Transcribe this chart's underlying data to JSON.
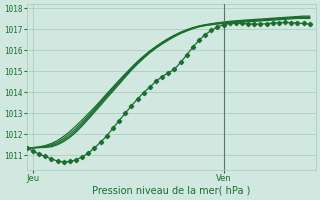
{
  "title": "",
  "xlabel": "Pression niveau de la mer( hPa )",
  "ylabel": "",
  "bg_color": "#d0e8e0",
  "plot_bg_color": "#d0e8e0",
  "grid_color": "#a8c8bc",
  "line_color": "#1a6e2e",
  "ylim": [
    1010.3,
    1018.2
  ],
  "xlim": [
    0,
    47
  ],
  "yticks": [
    1011,
    1012,
    1013,
    1014,
    1015,
    1016,
    1017,
    1018
  ],
  "xtick_positions": [
    1,
    32
  ],
  "xtick_labels": [
    "Jeu",
    "Ven"
  ],
  "vline_x": 32,
  "smooth_series": [
    [
      1011.35,
      1011.35,
      1011.36,
      1011.37,
      1011.4,
      1011.5,
      1011.65,
      1011.85,
      1012.1,
      1012.4,
      1012.72,
      1013.05,
      1013.38,
      1013.72,
      1014.05,
      1014.38,
      1014.72,
      1015.05,
      1015.35,
      1015.62,
      1015.88,
      1016.1,
      1016.3,
      1016.48,
      1016.65,
      1016.8,
      1016.92,
      1017.03,
      1017.12,
      1017.18,
      1017.22,
      1017.26,
      1017.28,
      1017.3,
      1017.32,
      1017.34,
      1017.36,
      1017.38,
      1017.4,
      1017.42,
      1017.44,
      1017.46,
      1017.48,
      1017.5,
      1017.52,
      1017.52,
      1017.52
    ],
    [
      1011.35,
      1011.35,
      1011.37,
      1011.4,
      1011.45,
      1011.55,
      1011.72,
      1011.92,
      1012.18,
      1012.48,
      1012.8,
      1013.13,
      1013.46,
      1013.8,
      1014.12,
      1014.45,
      1014.78,
      1015.1,
      1015.4,
      1015.67,
      1015.92,
      1016.14,
      1016.34,
      1016.52,
      1016.68,
      1016.83,
      1016.95,
      1017.05,
      1017.13,
      1017.19,
      1017.23,
      1017.27,
      1017.3,
      1017.33,
      1017.36,
      1017.38,
      1017.4,
      1017.42,
      1017.44,
      1017.46,
      1017.48,
      1017.5,
      1017.52,
      1017.54,
      1017.56,
      1017.56,
      1017.56
    ],
    [
      1011.35,
      1011.36,
      1011.38,
      1011.42,
      1011.5,
      1011.62,
      1011.8,
      1012.02,
      1012.28,
      1012.57,
      1012.88,
      1013.2,
      1013.53,
      1013.87,
      1014.19,
      1014.52,
      1014.84,
      1015.14,
      1015.43,
      1015.7,
      1015.95,
      1016.17,
      1016.37,
      1016.55,
      1016.71,
      1016.85,
      1016.97,
      1017.07,
      1017.15,
      1017.21,
      1017.25,
      1017.29,
      1017.32,
      1017.35,
      1017.38,
      1017.4,
      1017.42,
      1017.44,
      1017.46,
      1017.48,
      1017.5,
      1017.52,
      1017.54,
      1017.56,
      1017.58,
      1017.58,
      1017.58
    ],
    [
      1011.35,
      1011.36,
      1011.4,
      1011.46,
      1011.56,
      1011.7,
      1011.9,
      1012.13,
      1012.4,
      1012.68,
      1012.98,
      1013.28,
      1013.6,
      1013.93,
      1014.25,
      1014.57,
      1014.88,
      1015.18,
      1015.47,
      1015.73,
      1015.97,
      1016.18,
      1016.38,
      1016.56,
      1016.72,
      1016.86,
      1016.98,
      1017.08,
      1017.16,
      1017.22,
      1017.27,
      1017.31,
      1017.35,
      1017.38,
      1017.41,
      1017.43,
      1017.45,
      1017.47,
      1017.49,
      1017.51,
      1017.53,
      1017.55,
      1017.57,
      1017.59,
      1017.61,
      1017.63,
      1017.63
    ]
  ],
  "marker_series": [
    1011.35,
    1011.2,
    1011.05,
    1010.95,
    1010.82,
    1010.72,
    1010.68,
    1010.7,
    1010.78,
    1010.92,
    1011.1,
    1011.35,
    1011.62,
    1011.92,
    1012.28,
    1012.65,
    1013.0,
    1013.35,
    1013.68,
    1013.98,
    1014.25,
    1014.52,
    1014.75,
    1014.92,
    1015.1,
    1015.42,
    1015.78,
    1016.15,
    1016.48,
    1016.75,
    1016.95,
    1017.12,
    1017.22,
    1017.28,
    1017.3,
    1017.28,
    1017.26,
    1017.25,
    1017.25,
    1017.27,
    1017.3,
    1017.32,
    1017.33,
    1017.32,
    1017.3,
    1017.28,
    1017.25
  ],
  "marker": "D",
  "marker_size": 2.2,
  "linewidth": 0.9
}
